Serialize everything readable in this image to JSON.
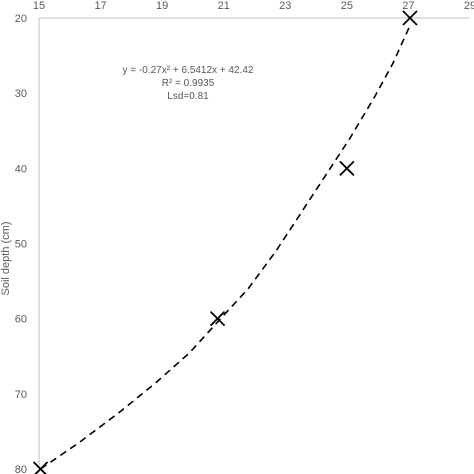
{
  "chart_data": {
    "type": "scatter",
    "title": "",
    "xlabel": "",
    "ylabel": "Soil depth (cm)",
    "x_axis_position": "top",
    "y_axis_reversed": true,
    "xlim": [
      15,
      29
    ],
    "ylim": [
      20,
      80
    ],
    "x_ticks": [
      15,
      17,
      19,
      21,
      23,
      25,
      27,
      29
    ],
    "y_ticks": [
      20,
      30,
      40,
      50,
      60,
      70,
      80
    ],
    "x_tick_labels": [
      "15",
      "17",
      "19",
      "21",
      "23",
      "25",
      "27",
      "29"
    ],
    "y_tick_labels": [
      "20",
      "30",
      "40",
      "50",
      "60",
      "70",
      "80"
    ],
    "grid": false,
    "series": [
      {
        "marker": "x",
        "points": [
          {
            "x": 15.05,
            "y": 80
          },
          {
            "x": 20.8,
            "y": 60
          },
          {
            "x": 25.0,
            "y": 40
          },
          {
            "x": 27.05,
            "y": 20
          }
        ]
      }
    ],
    "trendline": {
      "style": "dashed",
      "points": [
        {
          "x": 15.05,
          "y": 80
        },
        {
          "x": 16.3,
          "y": 76.5
        },
        {
          "x": 17.6,
          "y": 72.5
        },
        {
          "x": 18.8,
          "y": 68.5
        },
        {
          "x": 19.9,
          "y": 64.5
        },
        {
          "x": 20.9,
          "y": 60
        },
        {
          "x": 21.8,
          "y": 56
        },
        {
          "x": 22.7,
          "y": 51
        },
        {
          "x": 23.5,
          "y": 46
        },
        {
          "x": 24.3,
          "y": 41
        },
        {
          "x": 25.1,
          "y": 36
        },
        {
          "x": 25.9,
          "y": 30.5
        },
        {
          "x": 26.5,
          "y": 26
        },
        {
          "x": 27.05,
          "y": 21
        }
      ]
    },
    "annotations": [
      "y =  -0.27x² + 6.5412x + 42.42",
      "R² = 0.9935",
      "Lsd=0.81"
    ]
  }
}
